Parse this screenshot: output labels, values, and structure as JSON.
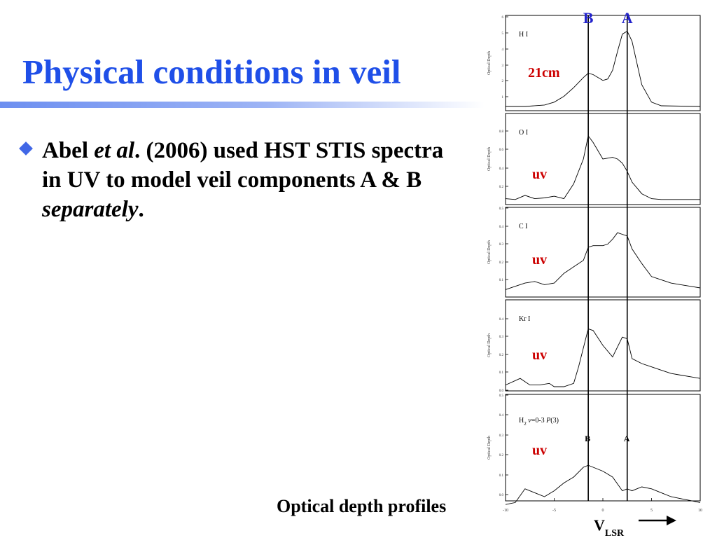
{
  "slide": {
    "title": "Physical conditions in veil",
    "body": {
      "author": "Abel ",
      "etal": "et al",
      "mid": ". (2006) used HST STIS spectra in UV to model veil components A & B ",
      "separately": "separately",
      "end": "."
    },
    "caption": "Optical depth profiles",
    "bullet_color": "#4167e6",
    "title_color": "#1f4fe8"
  },
  "chart_data": {
    "type": "line",
    "xlim": [
      -10,
      10
    ],
    "x_ticks": [
      "-10",
      "-5",
      "0",
      "5",
      "10"
    ],
    "ylabel": "Optical Depth",
    "vertical_lines": [
      {
        "label": "B",
        "x": -1.5
      },
      {
        "label": "A",
        "x": 2.5
      }
    ],
    "top_labels": [
      "B",
      "A"
    ],
    "top_label_color": "#2323cc",
    "xaxis_label": "V",
    "xaxis_label_sub": "LSR",
    "panels": [
      {
        "name": "H I",
        "note": "21cm",
        "note_color": "#cc0000",
        "ylim": [
          0,
          6
        ],
        "y_ticks": [
          "1",
          "2",
          "3",
          "4",
          "5",
          "6"
        ],
        "x": [
          -10,
          -8,
          -6,
          -5,
          -4,
          -3,
          -2,
          -1.5,
          -1,
          0,
          0.5,
          1,
          1.5,
          2,
          2.5,
          3,
          3.5,
          4,
          5,
          6,
          10
        ],
        "y": [
          0,
          0,
          0.1,
          0.3,
          0.7,
          1.3,
          2.0,
          2.3,
          2.2,
          1.8,
          1.9,
          2.5,
          3.8,
          5.0,
          5.2,
          4.5,
          3.0,
          1.5,
          0.3,
          0.05,
          0
        ]
      },
      {
        "name": "O I",
        "note": "uv",
        "note_color": "#cc0000",
        "ylim": [
          0,
          1.0
        ],
        "y_ticks": [
          "0.2",
          "0.4",
          "0.6",
          "0.8"
        ],
        "x": [
          -10,
          -9,
          -8,
          -7,
          -6,
          -5,
          -4,
          -3,
          -2,
          -1.5,
          -1,
          0,
          1,
          1.5,
          2,
          2.5,
          3,
          4,
          5,
          6,
          7,
          8,
          9,
          10
        ],
        "y": [
          0.02,
          0.01,
          0.06,
          0.02,
          0.03,
          0.05,
          0.02,
          0.2,
          0.5,
          0.78,
          0.7,
          0.5,
          0.52,
          0.5,
          0.45,
          0.35,
          0.22,
          0.08,
          0.02,
          0.01,
          0.01,
          0.01,
          0.01,
          0.01
        ]
      },
      {
        "name": "C I",
        "note": "uv",
        "note_color": "#cc0000",
        "ylim": [
          0,
          0.5
        ],
        "y_ticks": [
          "0.1",
          "0.2",
          "0.3",
          "0.4",
          "0.5"
        ],
        "x": [
          -10,
          -9,
          -8,
          -7,
          -6,
          -5,
          -4,
          -3,
          -2,
          -1.5,
          -1,
          0,
          0.5,
          1,
          1.5,
          2,
          2.5,
          3,
          4,
          5,
          6,
          7,
          8,
          9,
          10
        ],
        "y": [
          0.02,
          0.04,
          0.06,
          0.07,
          0.05,
          0.06,
          0.12,
          0.16,
          0.2,
          0.28,
          0.29,
          0.29,
          0.3,
          0.33,
          0.37,
          0.36,
          0.35,
          0.27,
          0.18,
          0.1,
          0.08,
          0.06,
          0.05,
          0.04,
          0.03
        ]
      },
      {
        "name": "Kr I",
        "note": "uv",
        "note_color": "#cc0000",
        "ylim": [
          0,
          0.5
        ],
        "y_ticks": [
          "0.0",
          "0.1",
          "0.2",
          "0.3",
          "0.4"
        ],
        "x": [
          -10,
          -8.5,
          -7.5,
          -6.5,
          -5.5,
          -5,
          -4,
          -3,
          -2.5,
          -1.5,
          -1,
          0,
          1,
          2,
          2.5,
          3,
          4,
          5,
          6,
          7,
          8,
          9,
          10
        ],
        "y": [
          0.01,
          0.05,
          0.01,
          0.01,
          0.02,
          0.0,
          0.0,
          0.02,
          0.12,
          0.35,
          0.34,
          0.25,
          0.18,
          0.3,
          0.29,
          0.17,
          0.14,
          0.12,
          0.1,
          0.08,
          0.07,
          0.06,
          0.05
        ]
      },
      {
        "name": "H",
        "name_sub": "2",
        "name_v": "v",
        "name_rest": "=0-3 ",
        "name_P": "P",
        "name_end": "(3)",
        "note": "uv",
        "note_color": "#cc0000",
        "ylim": [
          0,
          0.5
        ],
        "y_ticks": [
          "0.0",
          "0.1",
          "0.2",
          "0.3",
          "0.4",
          "0.5"
        ],
        "x": [
          -10,
          -9,
          -8,
          -7,
          -6,
          -5,
          -4,
          -3,
          -2,
          -1.5,
          -1,
          0,
          1,
          2,
          2.5,
          3,
          4,
          5,
          6,
          7,
          8,
          9,
          10
        ],
        "y": [
          -0.04,
          -0.03,
          0.04,
          0.02,
          0.0,
          0.03,
          0.07,
          0.1,
          0.15,
          0.16,
          0.15,
          0.13,
          0.1,
          0.03,
          0.04,
          0.03,
          0.05,
          0.04,
          0.02,
          0.0,
          -0.01,
          -0.02,
          -0.03
        ],
        "panel_labels": [
          "B",
          "A"
        ]
      }
    ]
  }
}
